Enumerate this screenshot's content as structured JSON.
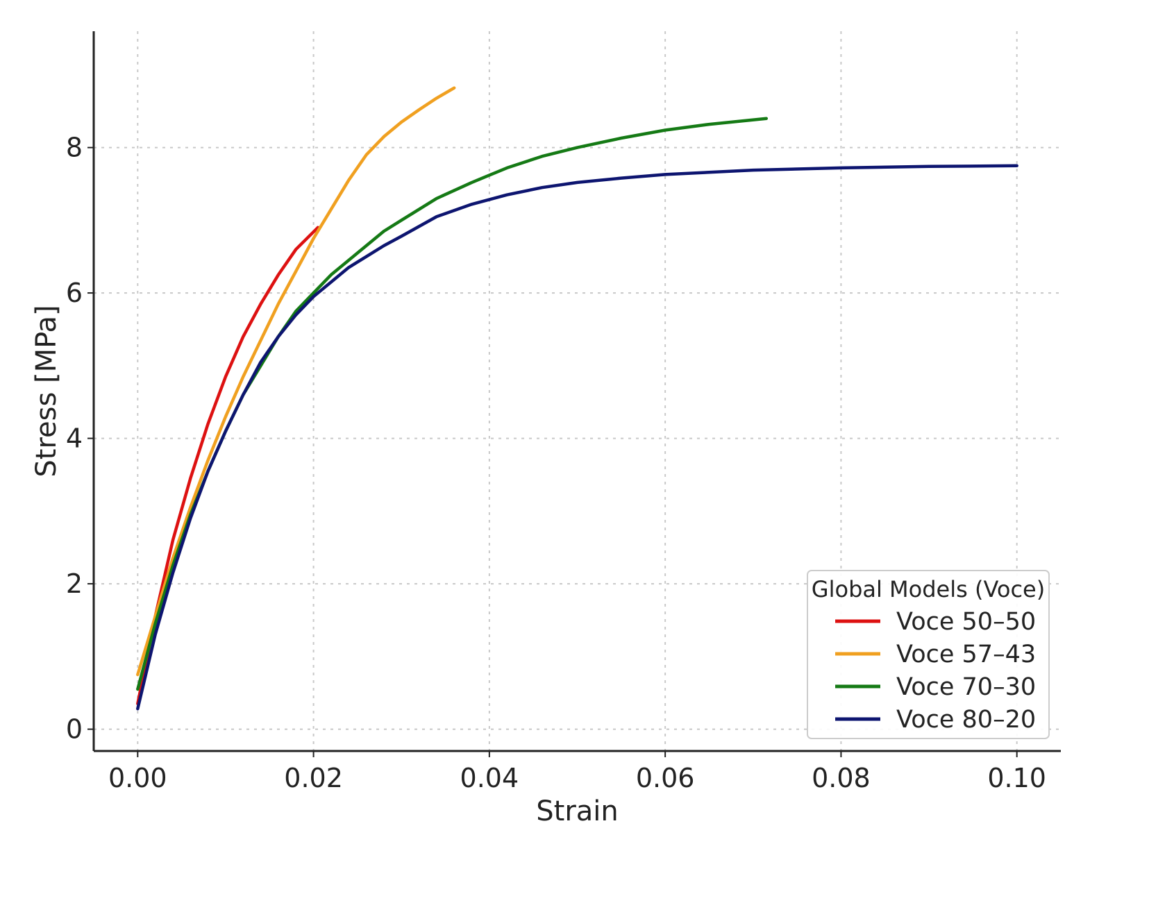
{
  "chart_data": {
    "type": "line",
    "title": "",
    "xlabel": "Strain",
    "ylabel": "Stress [MPa]",
    "xlim": [
      -0.005,
      0.105
    ],
    "ylim": [
      -0.3,
      9.6
    ],
    "xticks": [
      0.0,
      0.02,
      0.04,
      0.06,
      0.08,
      0.1
    ],
    "xtick_labels": [
      "0.00",
      "0.02",
      "0.04",
      "0.06",
      "0.08",
      "0.10"
    ],
    "yticks": [
      0,
      2,
      4,
      6,
      8
    ],
    "ytick_labels": [
      "0",
      "2",
      "4",
      "6",
      "8"
    ],
    "grid": true,
    "legend": {
      "title": "Global Models (Voce)",
      "placement": "lower-right"
    },
    "series": [
      {
        "name": "Voce 50–50",
        "color": "#dd1111",
        "x": [
          0.0,
          0.002,
          0.004,
          0.006,
          0.008,
          0.01,
          0.012,
          0.014,
          0.016,
          0.018,
          0.0205
        ],
        "y": [
          0.35,
          1.55,
          2.6,
          3.45,
          4.2,
          4.85,
          5.4,
          5.85,
          6.25,
          6.6,
          6.9
        ]
      },
      {
        "name": "Voce 57–43",
        "color": "#f0a020",
        "x": [
          0.0,
          0.002,
          0.004,
          0.006,
          0.008,
          0.01,
          0.012,
          0.014,
          0.016,
          0.018,
          0.02,
          0.022,
          0.024,
          0.026,
          0.028,
          0.03,
          0.032,
          0.034,
          0.036
        ],
        "y": [
          0.75,
          1.55,
          2.35,
          3.05,
          3.7,
          4.3,
          4.85,
          5.35,
          5.85,
          6.3,
          6.75,
          7.15,
          7.55,
          7.9,
          8.15,
          8.35,
          8.52,
          8.68,
          8.82
        ]
      },
      {
        "name": "Voce 70–30",
        "color": "#157a15",
        "x": [
          0.0,
          0.002,
          0.004,
          0.006,
          0.008,
          0.01,
          0.012,
          0.014,
          0.016,
          0.018,
          0.02,
          0.022,
          0.024,
          0.026,
          0.028,
          0.03,
          0.034,
          0.038,
          0.042,
          0.046,
          0.05,
          0.055,
          0.06,
          0.065,
          0.0715
        ],
        "y": [
          0.55,
          1.45,
          2.25,
          2.95,
          3.55,
          4.1,
          4.6,
          5.0,
          5.4,
          5.75,
          6.0,
          6.25,
          6.45,
          6.65,
          6.85,
          7.0,
          7.3,
          7.52,
          7.72,
          7.88,
          8.0,
          8.13,
          8.24,
          8.32,
          8.4
        ]
      },
      {
        "name": "Voce 80–20",
        "color": "#0d1570",
        "x": [
          0.0,
          0.002,
          0.004,
          0.006,
          0.008,
          0.01,
          0.012,
          0.014,
          0.016,
          0.018,
          0.02,
          0.022,
          0.024,
          0.026,
          0.028,
          0.03,
          0.034,
          0.038,
          0.042,
          0.046,
          0.05,
          0.055,
          0.06,
          0.07,
          0.08,
          0.09,
          0.1
        ],
        "y": [
          0.28,
          1.3,
          2.15,
          2.9,
          3.55,
          4.1,
          4.6,
          5.05,
          5.4,
          5.7,
          5.95,
          6.15,
          6.35,
          6.5,
          6.65,
          6.78,
          7.05,
          7.22,
          7.35,
          7.45,
          7.52,
          7.58,
          7.63,
          7.69,
          7.72,
          7.74,
          7.75
        ]
      }
    ]
  }
}
